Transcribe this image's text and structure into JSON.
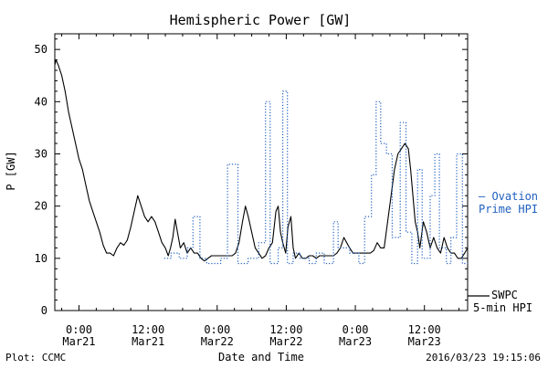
{
  "footer": {
    "left": "Plot: CCMC",
    "right": "2016/03/23 19:15:06"
  },
  "chart_data": {
    "type": "line",
    "title": "Hemispheric Power [GW]",
    "xlabel": "Date and Time",
    "ylabel": "P [GW]",
    "ylim": [
      0,
      53
    ],
    "xlim_hours": [
      -4.2,
      67.5
    ],
    "y_ticks": [
      0,
      10,
      20,
      30,
      40,
      50
    ],
    "x_ticks": [
      {
        "hour": 0,
        "line1": "0:00",
        "line2": "Mar21"
      },
      {
        "hour": 12,
        "line1": "12:00",
        "line2": "Mar21"
      },
      {
        "hour": 24,
        "line1": "0:00",
        "line2": "Mar22"
      },
      {
        "hour": 36,
        "line1": "12:00",
        "line2": "Mar22"
      },
      {
        "hour": 48,
        "line1": "0:00",
        "line2": "Mar23"
      },
      {
        "hour": 60,
        "line1": "12:00",
        "line2": "Mar23"
      }
    ],
    "grid": false,
    "series": [
      {
        "name": "SWPC 5-min HPI",
        "legend_lines": [
          "SWPC",
          "5-min HPI"
        ],
        "color": "#000000",
        "style": "solid",
        "points": [
          [
            -4.2,
            47
          ],
          [
            -4.0,
            48
          ],
          [
            -3.6,
            47
          ],
          [
            -3.0,
            45
          ],
          [
            -2.4,
            42
          ],
          [
            -1.8,
            38
          ],
          [
            -1.2,
            35
          ],
          [
            -0.6,
            32
          ],
          [
            0.0,
            29
          ],
          [
            0.6,
            27
          ],
          [
            1.2,
            24
          ],
          [
            1.8,
            21
          ],
          [
            2.4,
            19
          ],
          [
            3.0,
            17
          ],
          [
            3.6,
            15
          ],
          [
            4.2,
            12.5
          ],
          [
            4.8,
            11
          ],
          [
            5.4,
            11
          ],
          [
            6.0,
            10.5
          ],
          [
            6.6,
            12
          ],
          [
            7.2,
            13
          ],
          [
            7.8,
            12.5
          ],
          [
            8.4,
            13.5
          ],
          [
            9.0,
            16
          ],
          [
            9.6,
            19
          ],
          [
            10.2,
            22
          ],
          [
            10.8,
            20
          ],
          [
            11.4,
            18
          ],
          [
            12.0,
            17
          ],
          [
            12.6,
            18
          ],
          [
            13.2,
            17
          ],
          [
            13.8,
            15
          ],
          [
            14.4,
            13
          ],
          [
            15.0,
            12
          ],
          [
            15.5,
            10.5
          ],
          [
            15.9,
            12
          ],
          [
            16.3,
            14
          ],
          [
            16.7,
            17.5
          ],
          [
            17.1,
            15
          ],
          [
            17.6,
            12
          ],
          [
            18.2,
            13
          ],
          [
            18.8,
            11
          ],
          [
            19.4,
            12
          ],
          [
            20.0,
            11
          ],
          [
            20.6,
            11
          ],
          [
            21.2,
            10
          ],
          [
            21.8,
            9.5
          ],
          [
            22.4,
            10
          ],
          [
            23.0,
            10.5
          ],
          [
            23.6,
            10.5
          ],
          [
            24.2,
            10.5
          ],
          [
            24.8,
            10.5
          ],
          [
            25.4,
            10.5
          ],
          [
            26.0,
            10.5
          ],
          [
            26.6,
            10.5
          ],
          [
            27.2,
            11
          ],
          [
            27.8,
            13
          ],
          [
            28.4,
            17
          ],
          [
            28.9,
            20
          ],
          [
            29.4,
            18
          ],
          [
            30.0,
            15
          ],
          [
            30.6,
            12
          ],
          [
            31.2,
            11
          ],
          [
            31.8,
            10
          ],
          [
            32.4,
            10.5
          ],
          [
            33.0,
            12
          ],
          [
            33.6,
            13
          ],
          [
            34.2,
            19
          ],
          [
            34.6,
            20
          ],
          [
            35.0,
            15
          ],
          [
            35.4,
            13
          ],
          [
            35.9,
            11
          ],
          [
            36.3,
            16
          ],
          [
            36.8,
            18
          ],
          [
            37.2,
            12
          ],
          [
            37.6,
            10
          ],
          [
            38.2,
            11
          ],
          [
            38.8,
            10
          ],
          [
            39.4,
            10
          ],
          [
            40.0,
            10.5
          ],
          [
            40.6,
            10.5
          ],
          [
            41.2,
            10
          ],
          [
            41.8,
            10.5
          ],
          [
            42.4,
            10.5
          ],
          [
            43.0,
            10.5
          ],
          [
            43.6,
            10.5
          ],
          [
            44.2,
            10.5
          ],
          [
            44.8,
            11
          ],
          [
            45.4,
            12
          ],
          [
            46.0,
            14
          ],
          [
            46.5,
            13
          ],
          [
            47.0,
            12
          ],
          [
            47.6,
            11
          ],
          [
            48.2,
            11
          ],
          [
            48.8,
            11
          ],
          [
            49.4,
            11
          ],
          [
            50.0,
            11
          ],
          [
            50.6,
            11
          ],
          [
            51.2,
            11.5
          ],
          [
            51.8,
            13
          ],
          [
            52.4,
            12
          ],
          [
            53.0,
            12
          ],
          [
            53.6,
            17
          ],
          [
            54.2,
            22
          ],
          [
            54.8,
            27
          ],
          [
            55.4,
            30
          ],
          [
            56.0,
            31
          ],
          [
            56.6,
            32
          ],
          [
            57.2,
            31
          ],
          [
            57.6,
            27
          ],
          [
            58.0,
            22
          ],
          [
            58.4,
            17
          ],
          [
            58.8,
            15
          ],
          [
            59.2,
            12
          ],
          [
            59.8,
            17
          ],
          [
            60.4,
            15
          ],
          [
            61.0,
            12
          ],
          [
            61.6,
            14
          ],
          [
            62.2,
            12
          ],
          [
            62.8,
            11
          ],
          [
            63.4,
            14
          ],
          [
            64.0,
            12
          ],
          [
            64.6,
            11
          ],
          [
            65.2,
            11
          ],
          [
            65.8,
            10
          ],
          [
            66.4,
            10
          ],
          [
            67.0,
            11
          ],
          [
            67.5,
            12
          ]
        ]
      },
      {
        "name": "Ovation Prime HPI",
        "legend_lines": [
          "— Ovation",
          "Prime HPI"
        ],
        "color": "#1f5fbf",
        "style": "dotted",
        "points": [
          [
            14.8,
            10
          ],
          [
            16.0,
            10
          ],
          [
            16.0,
            11
          ],
          [
            17.4,
            11
          ],
          [
            17.4,
            10
          ],
          [
            18.8,
            10
          ],
          [
            18.8,
            12
          ],
          [
            19.8,
            12
          ],
          [
            19.8,
            18
          ],
          [
            21.0,
            18
          ],
          [
            21.0,
            10
          ],
          [
            22.2,
            10
          ],
          [
            22.2,
            9
          ],
          [
            24.6,
            9
          ],
          [
            24.6,
            10
          ],
          [
            25.8,
            10
          ],
          [
            25.8,
            28
          ],
          [
            27.6,
            28
          ],
          [
            27.6,
            9
          ],
          [
            29.4,
            9
          ],
          [
            29.4,
            10
          ],
          [
            31.2,
            10
          ],
          [
            31.2,
            13
          ],
          [
            32.4,
            13
          ],
          [
            32.4,
            40
          ],
          [
            33.2,
            40
          ],
          [
            33.2,
            9
          ],
          [
            34.6,
            9
          ],
          [
            34.6,
            12
          ],
          [
            35.4,
            12
          ],
          [
            35.4,
            42
          ],
          [
            36.2,
            42
          ],
          [
            36.2,
            9
          ],
          [
            37.2,
            9
          ],
          [
            37.2,
            11
          ],
          [
            38.4,
            11
          ],
          [
            38.4,
            10
          ],
          [
            40.0,
            10
          ],
          [
            40.0,
            9
          ],
          [
            41.2,
            9
          ],
          [
            41.2,
            11
          ],
          [
            42.6,
            11
          ],
          [
            42.6,
            9
          ],
          [
            44.2,
            9
          ],
          [
            44.2,
            17
          ],
          [
            45.0,
            17
          ],
          [
            45.0,
            12
          ],
          [
            47.0,
            12
          ],
          [
            47.0,
            11
          ],
          [
            48.6,
            11
          ],
          [
            48.6,
            9
          ],
          [
            49.6,
            9
          ],
          [
            49.6,
            18
          ],
          [
            50.8,
            18
          ],
          [
            50.8,
            26
          ],
          [
            51.6,
            26
          ],
          [
            51.6,
            40
          ],
          [
            52.4,
            40
          ],
          [
            52.4,
            32
          ],
          [
            53.4,
            32
          ],
          [
            53.4,
            30
          ],
          [
            54.4,
            30
          ],
          [
            54.4,
            14
          ],
          [
            55.8,
            14
          ],
          [
            55.8,
            36
          ],
          [
            56.8,
            36
          ],
          [
            56.8,
            15
          ],
          [
            57.8,
            15
          ],
          [
            57.8,
            9
          ],
          [
            58.8,
            9
          ],
          [
            58.8,
            27
          ],
          [
            59.6,
            27
          ],
          [
            59.6,
            10
          ],
          [
            61.0,
            10
          ],
          [
            61.0,
            22
          ],
          [
            61.8,
            22
          ],
          [
            61.8,
            30
          ],
          [
            62.6,
            30
          ],
          [
            62.6,
            12
          ],
          [
            63.8,
            12
          ],
          [
            63.8,
            9
          ],
          [
            64.6,
            9
          ],
          [
            64.6,
            14
          ],
          [
            65.6,
            14
          ],
          [
            65.6,
            30
          ],
          [
            66.6,
            30
          ],
          [
            66.6,
            9
          ],
          [
            67.5,
            9
          ]
        ]
      }
    ]
  }
}
